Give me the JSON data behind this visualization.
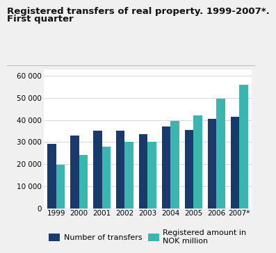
{
  "title_line1": "Registered transfers of real property. 1999-2007*.",
  "title_line2": "First quarter",
  "years": [
    "1999",
    "2000",
    "2001",
    "2002",
    "2003",
    "2004",
    "2005",
    "2006",
    "2007*"
  ],
  "transfers": [
    29000,
    33000,
    35000,
    35000,
    33500,
    37000,
    35500,
    40500,
    41500
  ],
  "amounts": [
    19800,
    24000,
    28000,
    30000,
    30200,
    39500,
    42000,
    49500,
    56000
  ],
  "bar_color_transfers": "#1a3a6b",
  "bar_color_amounts": "#3ab5b0",
  "background_color": "#f0f0f0",
  "plot_bg_color": "#ffffff",
  "ylim": [
    0,
    63000
  ],
  "yticks": [
    0,
    10000,
    20000,
    30000,
    40000,
    50000,
    60000
  ],
  "ytick_labels": [
    "0",
    "10 000",
    "20 000",
    "30 000",
    "40 000",
    "50 000",
    "60 000"
  ],
  "legend_label_transfers": "Number of transfers",
  "legend_label_amounts": "Registered amount in\nNOK million",
  "title_fontsize": 9.5,
  "tick_fontsize": 7.5,
  "legend_fontsize": 8.0
}
